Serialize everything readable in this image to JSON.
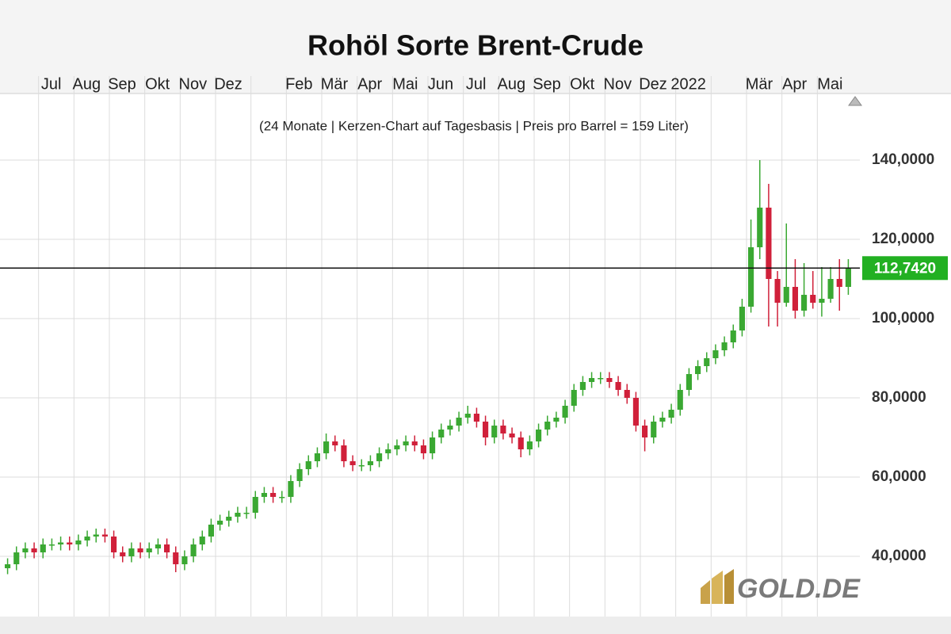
{
  "chart_data": {
    "type": "candlestick",
    "title": "Rohöl Sorte Brent-Crude",
    "subtitle": "(24 Monate | Kerzen-Chart auf Tagesbasis | Preis pro Barrel = 159 Liter)",
    "categories": [
      "Jul",
      "Aug",
      "Sep",
      "Okt",
      "Nov",
      "Dez",
      null,
      "Feb",
      "Mär",
      "Apr",
      "Mai",
      "Jun",
      "Jul",
      "Aug",
      "Sep",
      "Okt",
      "Nov",
      "Dez",
      "2022",
      null,
      "Mär",
      "Apr",
      "Mai"
    ],
    "open": [
      37,
      38,
      41,
      42,
      41,
      43,
      43,
      43.5,
      43,
      44,
      45,
      45.5,
      45,
      41,
      40,
      42,
      41,
      42,
      43,
      41,
      38,
      40,
      43,
      45,
      48,
      49,
      50,
      51,
      51,
      55,
      56,
      55,
      55,
      59,
      62,
      64,
      66,
      69,
      68,
      64,
      63,
      63,
      64,
      66,
      67,
      68,
      69,
      68,
      66,
      70,
      72,
      73,
      75,
      76,
      74,
      70,
      73,
      71,
      70,
      67,
      69,
      72,
      74,
      75,
      78,
      82,
      84,
      85,
      85,
      84,
      82,
      80,
      73,
      70,
      74,
      75,
      77,
      82,
      86,
      88,
      90,
      92,
      94,
      97,
      103,
      118,
      128,
      110,
      104,
      108,
      102,
      106,
      104,
      105,
      110,
      108
    ],
    "high": [
      39.5,
      42.5,
      43.5,
      43.5,
      44.5,
      44.5,
      45,
      45,
      45.5,
      46.5,
      47,
      47,
      46.5,
      42.5,
      43.5,
      43.5,
      43.5,
      44.5,
      44.5,
      42.5,
      41.5,
      44.5,
      46.5,
      49.5,
      50.5,
      51.5,
      52.5,
      52.5,
      56.5,
      57.5,
      57.5,
      56.5,
      60.5,
      63.5,
      65.5,
      67.5,
      71,
      70.5,
      69.5,
      65.5,
      64.5,
      65.5,
      67.5,
      68.5,
      69.5,
      70.5,
      70.5,
      69.5,
      71.5,
      73.5,
      74.5,
      76.5,
      78,
      77.5,
      75.5,
      74.5,
      74.5,
      72.5,
      71.5,
      70.5,
      73.5,
      75.5,
      76.5,
      79.5,
      83.5,
      85.5,
      86.5,
      86.5,
      86.5,
      85.5,
      83.5,
      81.5,
      74.5,
      75.5,
      76.5,
      78.5,
      83.5,
      87.5,
      89.5,
      91.5,
      93.5,
      95.5,
      98.5,
      105,
      125,
      140,
      134,
      112,
      124,
      115,
      114,
      112,
      113,
      113,
      115,
      115
    ],
    "low": [
      35.5,
      36.5,
      39.5,
      39.5,
      39.5,
      41.5,
      41.5,
      41.5,
      41.5,
      42.5,
      43.5,
      43.5,
      39.5,
      38.5,
      38.5,
      39.5,
      39.5,
      40.5,
      39.5,
      36,
      36.5,
      38.5,
      41.5,
      43.5,
      46.5,
      47.5,
      48.5,
      49.5,
      49.5,
      53.5,
      53.5,
      53.5,
      53.5,
      57.5,
      60.5,
      62.5,
      64.5,
      66.5,
      62.5,
      61.5,
      61.5,
      61.5,
      62.5,
      64.5,
      65.5,
      66.5,
      66.5,
      64.5,
      64.5,
      68.5,
      70.5,
      71.5,
      73.5,
      72.5,
      68,
      68.5,
      69.5,
      68.5,
      65,
      65.5,
      67.5,
      70.5,
      72.5,
      73.5,
      76.5,
      80.5,
      82.5,
      83.5,
      82.5,
      80.5,
      78.5,
      71.5,
      66.5,
      68.5,
      72.5,
      73.5,
      75.5,
      80.5,
      84.5,
      86.5,
      88.5,
      90.5,
      92.5,
      95.5,
      101.5,
      115,
      98,
      98,
      103,
      100,
      100.5,
      102.5,
      100.5,
      104,
      102,
      106
    ],
    "close": [
      38,
      41,
      42,
      41,
      43,
      43,
      43.5,
      43,
      44,
      45,
      45.5,
      45,
      41,
      40,
      42,
      41,
      42,
      43,
      41,
      38,
      40,
      43,
      45,
      48,
      49,
      50,
      51,
      51,
      55,
      56,
      55,
      55,
      59,
      62,
      64,
      66,
      69,
      68,
      64,
      63,
      63,
      64,
      66,
      67,
      68,
      69,
      68,
      66,
      70,
      72,
      73,
      75,
      76,
      74,
      70,
      73,
      71,
      70,
      67,
      69,
      72,
      74,
      75,
      78,
      82,
      84,
      85,
      85,
      84,
      82,
      80,
      73,
      70,
      74,
      75,
      77,
      82,
      86,
      88,
      90,
      92,
      94,
      97,
      103,
      118,
      128,
      110,
      104,
      108,
      102,
      106,
      104,
      105,
      110,
      108,
      112.7
    ],
    "up_color": "#3aa832",
    "down_color": "#d0203a",
    "last_price": {
      "value": 112.742,
      "label": "112,7420"
    },
    "last_price_color": "#22b022",
    "ylim": [
      24.8,
      156.8
    ],
    "yticks": [
      {
        "value": 40,
        "label": "40,0000"
      },
      {
        "value": 60,
        "label": "60,0000"
      },
      {
        "value": 80,
        "label": "80,0000"
      },
      {
        "value": 100,
        "label": "100,0000"
      },
      {
        "value": 120,
        "label": "120,0000"
      },
      {
        "value": 140,
        "label": "140,0000"
      }
    ],
    "grid": true,
    "logo": "GOLD.DE"
  }
}
